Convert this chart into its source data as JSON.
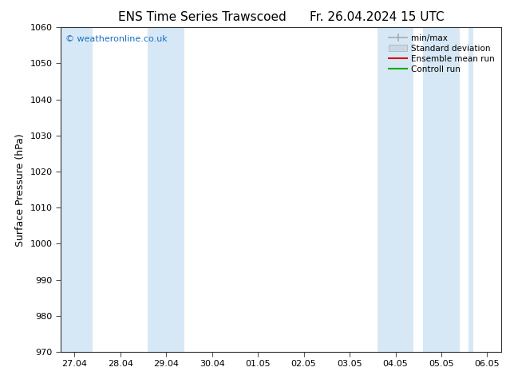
{
  "title_left": "ENS Time Series Trawscoed",
  "title_right": "Fr. 26.04.2024 15 UTC",
  "ylabel": "Surface Pressure (hPa)",
  "ylim": [
    970,
    1060
  ],
  "yticks": [
    970,
    980,
    990,
    1000,
    1010,
    1020,
    1030,
    1040,
    1050,
    1060
  ],
  "xtick_labels": [
    "27.04",
    "28.04",
    "29.04",
    "30.04",
    "01.05",
    "02.05",
    "03.05",
    "04.05",
    "05.05",
    "06.05"
  ],
  "watermark": "© weatheronline.co.uk",
  "watermark_color": "#1a6fc4",
  "bg_color": "#ffffff",
  "shaded_band_color": "#d6e8f5",
  "title_fontsize": 11,
  "tick_fontsize": 8,
  "label_fontsize": 9,
  "legend_fontsize": 7.5
}
